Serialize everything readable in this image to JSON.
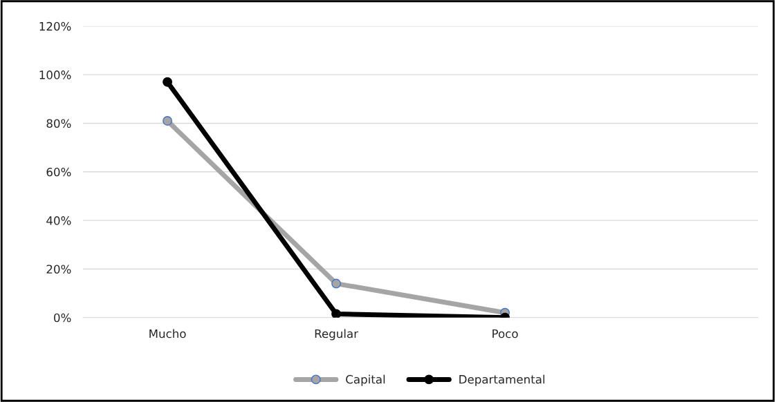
{
  "chart_data": {
    "type": "line",
    "categories": [
      "Mucho",
      "Regular",
      "Poco",
      null
    ],
    "series": [
      {
        "name": "Capital",
        "color": "#a5a5a5",
        "values": [
          81,
          14,
          2,
          null
        ]
      },
      {
        "name": "Departamental",
        "color": "#000000",
        "values": [
          97,
          1.5,
          0,
          null
        ]
      }
    ],
    "ylim": [
      0,
      120
    ],
    "yticks": [
      {
        "value": 0,
        "label": "0%"
      },
      {
        "value": 20,
        "label": "20%"
      },
      {
        "value": 40,
        "label": "40%"
      },
      {
        "value": 60,
        "label": "60%"
      },
      {
        "value": 80,
        "label": "80%"
      },
      {
        "value": 100,
        "label": "100%"
      },
      {
        "value": 120,
        "label": "120%"
      }
    ],
    "grid": "y",
    "legend": "bottom",
    "marker": "circle",
    "line_style": "solid"
  }
}
